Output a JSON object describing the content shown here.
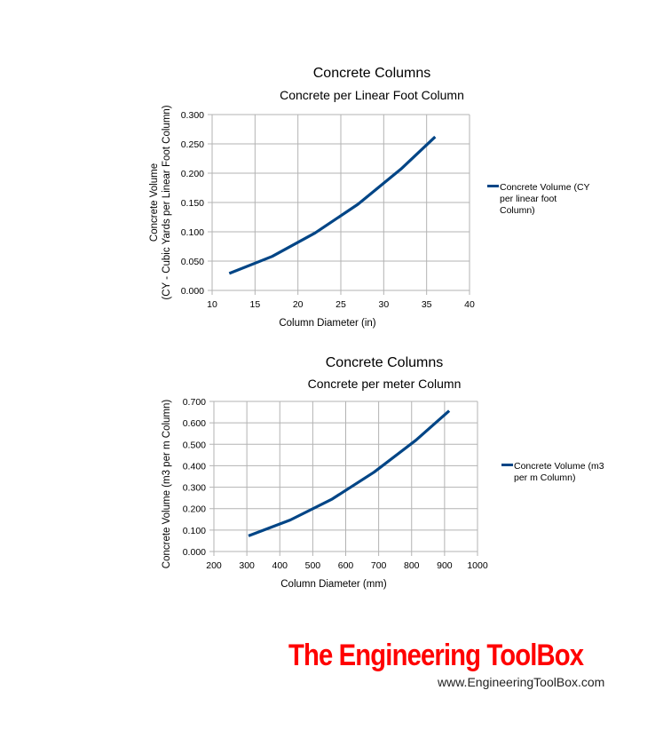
{
  "chart_data": [
    {
      "type": "line",
      "title": "Concrete Columns",
      "subtitle": "Concrete per Linear Foot Column",
      "xlabel": "Column Diameter (in)",
      "ylabel_line1": "Concrete Volume",
      "ylabel_line2": "(CY - Cubic Yards per Linear Foot Column)",
      "xlim": [
        10,
        40
      ],
      "ylim": [
        0,
        0.3
      ],
      "x_ticks": [
        "10",
        "15",
        "20",
        "25",
        "30",
        "35",
        "40"
      ],
      "y_ticks": [
        "0.000",
        "0.050",
        "0.100",
        "0.150",
        "0.200",
        "0.250",
        "0.300"
      ],
      "grid": true,
      "legend_position": "right",
      "x": [
        12,
        17,
        22,
        27,
        32,
        36
      ],
      "series": [
        {
          "name": "Concrete Volume (CY per linear foot Column)",
          "legend_lines": [
            "Concrete Volume (CY",
            "per linear foot",
            "Column)"
          ],
          "color": "#004586",
          "values": [
            0.029,
            0.058,
            0.098,
            0.147,
            0.207,
            0.262
          ]
        }
      ]
    },
    {
      "type": "line",
      "title": "Concrete Columns",
      "subtitle": "Concrete per meter Column",
      "xlabel": "Column Diameter (mm)",
      "ylabel_line1": "Concrete Volume (m3 per m Column)",
      "xlim": [
        200,
        1000
      ],
      "ylim": [
        0,
        0.7
      ],
      "x_ticks": [
        "200",
        "300",
        "400",
        "500",
        "600",
        "700",
        "800",
        "900",
        "1000"
      ],
      "y_ticks": [
        "0.000",
        "0.100",
        "0.200",
        "0.300",
        "0.400",
        "0.500",
        "0.600",
        "0.700"
      ],
      "grid": true,
      "legend_position": "right",
      "x": [
        305,
        432,
        559,
        686,
        813,
        914
      ],
      "series": [
        {
          "name": "Concrete Volume (m3 per m Column)",
          "legend_lines": [
            "Concrete Volume (m3",
            "per m Column)"
          ],
          "color": "#004586",
          "values": [
            0.073,
            0.147,
            0.245,
            0.37,
            0.519,
            0.656
          ]
        }
      ]
    }
  ],
  "branding": {
    "logo_text": "The Engineering ToolBox",
    "url": "www.EngineeringToolBox.com"
  },
  "colors": {
    "line": "#004586",
    "grid": "#b3b3b3",
    "logo": "#ff0000"
  }
}
